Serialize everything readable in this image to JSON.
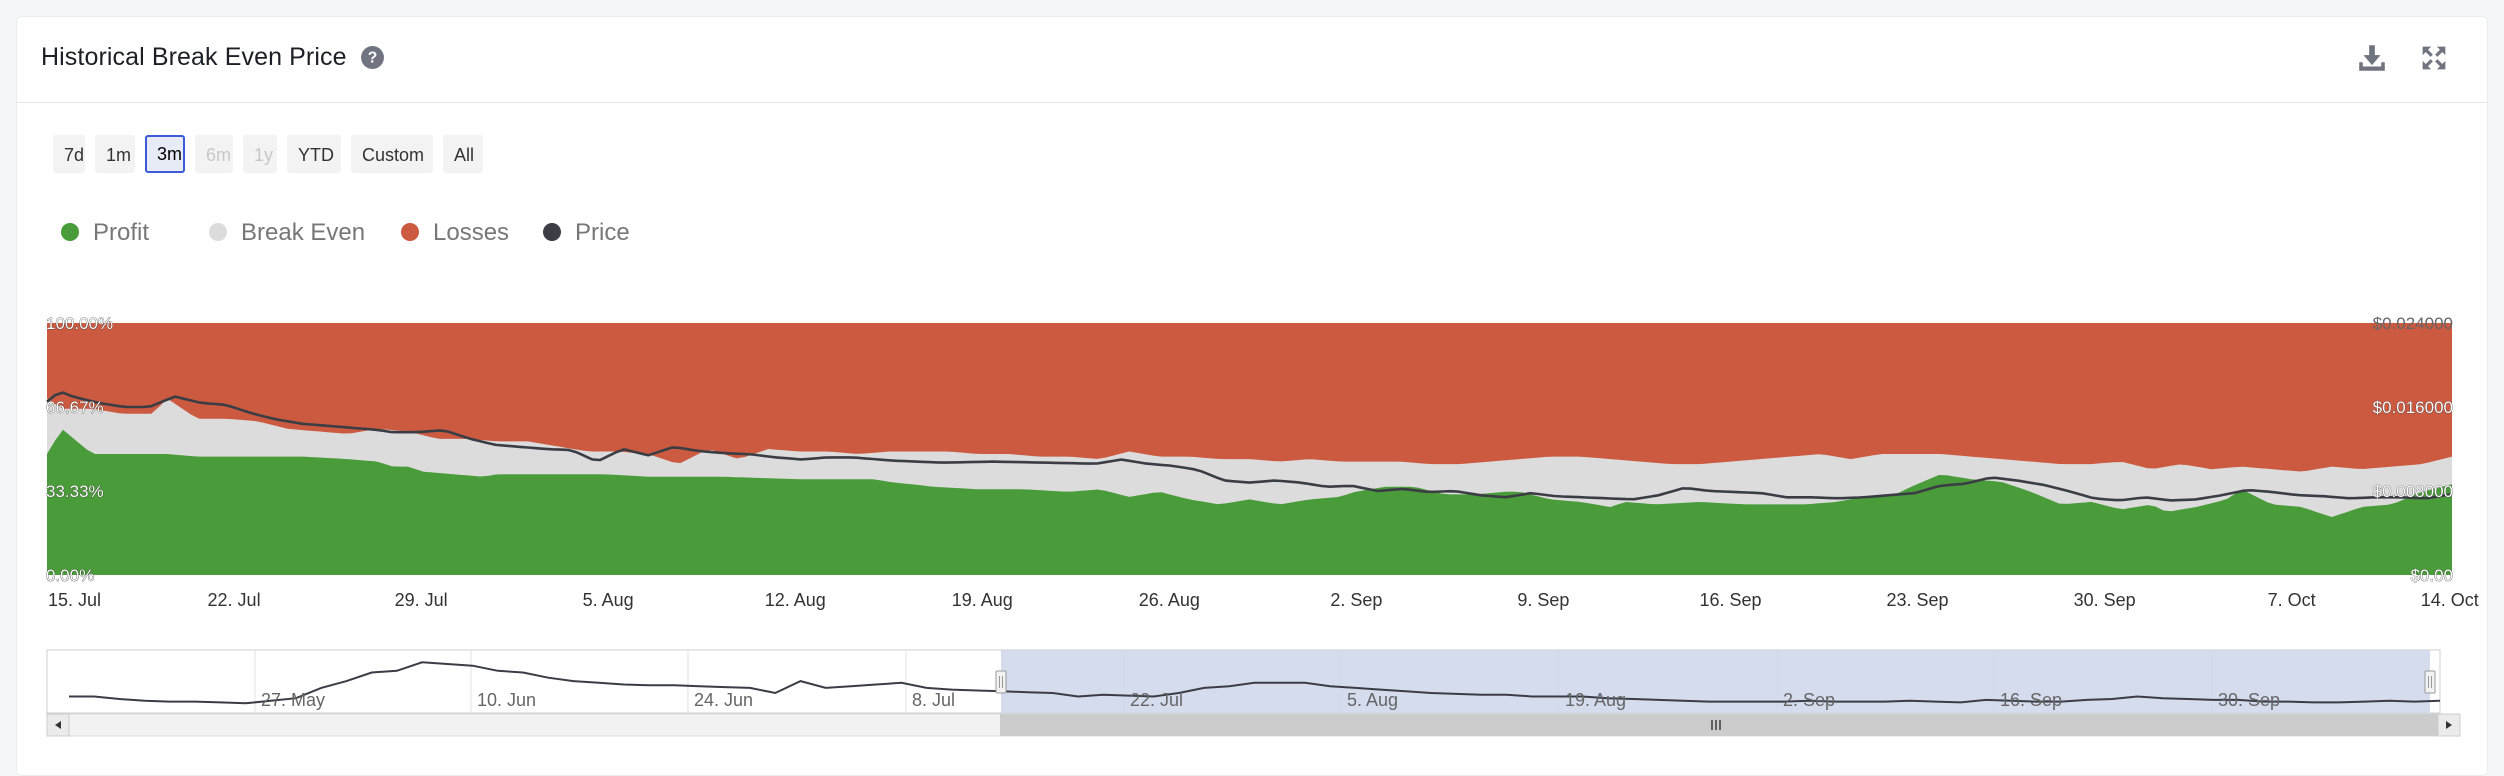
{
  "header": {
    "title": "Historical Break Even Price",
    "help_icon": "question-circle-icon",
    "download_icon": "download-icon",
    "expand_icon": "fullscreen-expand-icon"
  },
  "range_buttons": [
    {
      "label": "7d",
      "state": "normal"
    },
    {
      "label": "1m",
      "state": "normal"
    },
    {
      "label": "3m",
      "state": "active"
    },
    {
      "label": "6m",
      "state": "disabled"
    },
    {
      "label": "1y",
      "state": "disabled"
    },
    {
      "label": "YTD",
      "state": "normal"
    },
    {
      "label": "Custom",
      "state": "normal"
    },
    {
      "label": "All",
      "state": "normal"
    }
  ],
  "legend": [
    {
      "label": "Profit",
      "color": "#4a9b3a"
    },
    {
      "label": "Break Even",
      "color": "#dcdcdc"
    },
    {
      "label": "Losses",
      "color": "#cb5a40"
    },
    {
      "label": "Price",
      "color": "#3b3d45"
    }
  ],
  "chart_data": {
    "type": "area",
    "stacking": "percent",
    "legend_position": "top-left",
    "x_start": "15. Jul",
    "x_end": "14. Oct",
    "x_step_days": 1,
    "xtick_labels": [
      "15. Jul",
      "22. Jul",
      "29. Jul",
      "5. Aug",
      "12. Aug",
      "19. Aug",
      "26. Aug",
      "2. Sep",
      "9. Sep",
      "16. Sep",
      "23. Sep",
      "30. Sep",
      "7. Oct",
      "14. Oct"
    ],
    "y_left": {
      "ticks": [
        "0.00%",
        "33.33%",
        "66.67%",
        "100.00%"
      ],
      "range": [
        0,
        100
      ]
    },
    "y_right": {
      "ticks": [
        "$0.00",
        "$0.008000",
        "$0.016000",
        "$0.024000"
      ],
      "range": [
        0,
        0.024
      ]
    },
    "series": [
      {
        "name": "Profit",
        "unit": "percent",
        "color": "#4a9b3a",
        "anchors": [
          [
            0,
            48
          ],
          [
            1,
            58
          ],
          [
            3,
            48
          ],
          [
            7,
            48
          ],
          [
            8,
            48
          ],
          [
            10,
            47
          ],
          [
            11,
            47
          ],
          [
            17,
            47
          ],
          [
            20,
            46
          ],
          [
            22,
            45
          ],
          [
            23,
            43
          ],
          [
            24,
            43
          ],
          [
            25,
            41
          ],
          [
            27,
            40
          ],
          [
            29,
            39
          ],
          [
            30,
            40
          ],
          [
            32,
            40
          ],
          [
            34,
            40
          ],
          [
            37,
            40
          ],
          [
            40,
            39
          ],
          [
            45,
            39
          ],
          [
            50,
            38
          ],
          [
            53,
            38
          ],
          [
            55,
            38
          ],
          [
            56,
            37
          ],
          [
            59,
            35
          ],
          [
            62,
            34
          ],
          [
            65,
            34
          ],
          [
            68,
            33
          ],
          [
            70,
            34
          ],
          [
            72,
            31
          ],
          [
            74,
            33
          ],
          [
            76,
            30
          ],
          [
            78,
            28
          ],
          [
            80,
            30
          ],
          [
            82,
            28
          ],
          [
            84,
            30
          ],
          [
            86,
            31
          ],
          [
            87,
            33
          ],
          [
            88,
            34
          ],
          [
            89,
            35
          ],
          [
            91,
            35
          ],
          [
            93,
            32
          ],
          [
            95,
            32
          ],
          [
            97,
            33
          ],
          [
            98,
            33
          ],
          [
            100,
            30
          ],
          [
            102,
            29
          ],
          [
            104,
            27
          ],
          [
            105,
            29
          ],
          [
            107,
            28
          ],
          [
            110,
            29
          ],
          [
            113,
            28
          ],
          [
            115,
            28
          ],
          [
            117,
            28
          ],
          [
            119,
            29
          ],
          [
            121,
            31
          ],
          [
            123,
            32
          ],
          [
            124,
            35
          ],
          [
            126,
            40
          ],
          [
            128,
            38
          ],
          [
            130,
            37
          ],
          [
            132,
            33
          ],
          [
            134,
            28
          ],
          [
            136,
            29
          ],
          [
            138,
            26
          ],
          [
            140,
            28
          ],
          [
            141,
            25
          ],
          [
            143,
            27
          ],
          [
            145,
            30
          ],
          [
            146,
            34
          ],
          [
            148,
            28
          ],
          [
            150,
            27
          ],
          [
            152,
            23
          ],
          [
            154,
            27
          ],
          [
            156,
            28
          ],
          [
            158,
            33
          ],
          [
            160,
            36
          ]
        ]
      },
      {
        "name": "Break Even",
        "unit": "percent",
        "color": "#dcdcdc",
        "anchors": [
          [
            0,
            70
          ],
          [
            1,
            66
          ],
          [
            3,
            66
          ],
          [
            5,
            64
          ],
          [
            7,
            64
          ],
          [
            8,
            70
          ],
          [
            10,
            62
          ],
          [
            12,
            62
          ],
          [
            14,
            61
          ],
          [
            16,
            58
          ],
          [
            18,
            57
          ],
          [
            20,
            56
          ],
          [
            22,
            58
          ],
          [
            24,
            57
          ],
          [
            26,
            54
          ],
          [
            28,
            54
          ],
          [
            30,
            53
          ],
          [
            32,
            53
          ],
          [
            34,
            51
          ],
          [
            36,
            49
          ],
          [
            38,
            49
          ],
          [
            40,
            48
          ],
          [
            42,
            44
          ],
          [
            44,
            50
          ],
          [
            46,
            46
          ],
          [
            48,
            50
          ],
          [
            50,
            49
          ],
          [
            52,
            49
          ],
          [
            54,
            48
          ],
          [
            56,
            49
          ],
          [
            58,
            49
          ],
          [
            60,
            49
          ],
          [
            62,
            48
          ],
          [
            64,
            48
          ],
          [
            66,
            47
          ],
          [
            68,
            47
          ],
          [
            70,
            46
          ],
          [
            72,
            49
          ],
          [
            74,
            47
          ],
          [
            76,
            47
          ],
          [
            78,
            46
          ],
          [
            80,
            46
          ],
          [
            82,
            45
          ],
          [
            84,
            46
          ],
          [
            86,
            45
          ],
          [
            88,
            45
          ],
          [
            90,
            45
          ],
          [
            92,
            44
          ],
          [
            94,
            44
          ],
          [
            96,
            45
          ],
          [
            98,
            46
          ],
          [
            100,
            47
          ],
          [
            102,
            47
          ],
          [
            104,
            46
          ],
          [
            106,
            45
          ],
          [
            108,
            44
          ],
          [
            110,
            44
          ],
          [
            112,
            45
          ],
          [
            114,
            46
          ],
          [
            116,
            47
          ],
          [
            118,
            48
          ],
          [
            120,
            46
          ],
          [
            122,
            48
          ],
          [
            124,
            48
          ],
          [
            126,
            48
          ],
          [
            128,
            47
          ],
          [
            130,
            46
          ],
          [
            132,
            45
          ],
          [
            134,
            44
          ],
          [
            136,
            44
          ],
          [
            138,
            45
          ],
          [
            140,
            42
          ],
          [
            142,
            44
          ],
          [
            144,
            42
          ],
          [
            146,
            43
          ],
          [
            148,
            42
          ],
          [
            150,
            41
          ],
          [
            152,
            43
          ],
          [
            154,
            42
          ],
          [
            156,
            43
          ],
          [
            158,
            44
          ],
          [
            160,
            47
          ]
        ]
      },
      {
        "name": "Losses",
        "unit": "percent",
        "color": "#cb5a40",
        "fill": "remainder to 100%"
      },
      {
        "name": "Price",
        "unit": "USD",
        "color": "#3b3d45",
        "anchors": [
          [
            0,
            0.0165
          ],
          [
            1,
            0.0175
          ],
          [
            2,
            0.017
          ],
          [
            4,
            0.0164
          ],
          [
            6,
            0.016
          ],
          [
            8,
            0.016
          ],
          [
            10,
            0.017
          ],
          [
            12,
            0.0164
          ],
          [
            14,
            0.0162
          ],
          [
            16,
            0.0154
          ],
          [
            18,
            0.0148
          ],
          [
            20,
            0.0144
          ],
          [
            22,
            0.0142
          ],
          [
            24,
            0.014
          ],
          [
            26,
            0.0138
          ],
          [
            27,
            0.0136
          ],
          [
            29,
            0.0136
          ],
          [
            31,
            0.0138
          ],
          [
            33,
            0.013
          ],
          [
            35,
            0.0124
          ],
          [
            37,
            0.0122
          ],
          [
            39,
            0.012
          ],
          [
            41,
            0.0119
          ],
          [
            43,
            0.0108
          ],
          [
            45,
            0.012
          ],
          [
            47,
            0.0114
          ],
          [
            49,
            0.0122
          ],
          [
            51,
            0.0118
          ],
          [
            53,
            0.0116
          ],
          [
            55,
            0.0115
          ],
          [
            57,
            0.0112
          ],
          [
            59,
            0.011
          ],
          [
            61,
            0.0112
          ],
          [
            63,
            0.0112
          ],
          [
            66,
            0.0109
          ],
          [
            70,
            0.0107
          ],
          [
            74,
            0.0108
          ],
          [
            78,
            0.0107
          ],
          [
            82,
            0.0106
          ],
          [
            84,
            0.011
          ],
          [
            86,
            0.0106
          ],
          [
            88,
            0.0104
          ],
          [
            90,
            0.01
          ],
          [
            92,
            0.009
          ],
          [
            94,
            0.0088
          ],
          [
            96,
            0.009
          ],
          [
            98,
            0.0088
          ],
          [
            100,
            0.0084
          ],
          [
            102,
            0.0085
          ],
          [
            104,
            0.008
          ],
          [
            106,
            0.0082
          ],
          [
            108,
            0.0079
          ],
          [
            110,
            0.008
          ],
          [
            112,
            0.0076
          ],
          [
            114,
            0.0074
          ],
          [
            116,
            0.0078
          ],
          [
            118,
            0.0075
          ],
          [
            120,
            0.0074
          ],
          [
            122,
            0.0073
          ],
          [
            124,
            0.0072
          ],
          [
            126,
            0.0076
          ],
          [
            128,
            0.0083
          ],
          [
            130,
            0.008
          ],
          [
            132,
            0.0079
          ],
          [
            134,
            0.0078
          ],
          [
            136,
            0.0074
          ],
          [
            138,
            0.0074
          ],
          [
            140,
            0.0073
          ],
          [
            142,
            0.0074
          ],
          [
            144,
            0.0076
          ],
          [
            146,
            0.0078
          ],
          [
            148,
            0.0085
          ],
          [
            150,
            0.0087
          ],
          [
            152,
            0.0093
          ],
          [
            154,
            0.009
          ],
          [
            156,
            0.0086
          ],
          [
            158,
            0.008
          ],
          [
            160,
            0.0073
          ],
          [
            162,
            0.0071
          ],
          [
            164,
            0.0074
          ],
          [
            166,
            0.0071
          ],
          [
            168,
            0.0072
          ],
          [
            170,
            0.0076
          ],
          [
            172,
            0.0081
          ],
          [
            174,
            0.0079
          ],
          [
            176,
            0.0076
          ],
          [
            178,
            0.0075
          ],
          [
            180,
            0.0073
          ],
          [
            182,
            0.0074
          ],
          [
            184,
            0.0074
          ],
          [
            186,
            0.0073
          ],
          [
            188,
            0.0077
          ]
        ]
      }
    ]
  },
  "navigator": {
    "labels": [
      "27. May",
      "10. Jun",
      "24. Jun",
      "8. Jul",
      "22. Jul",
      "5. Aug",
      "19. Aug",
      "2. Sep",
      "16. Sep",
      "30. Sep"
    ],
    "selected_range": [
      "15. Jul",
      "14. Oct"
    ],
    "price_series": [
      0.01,
      0.01,
      0.0097,
      0.0095,
      0.0094,
      0.0094,
      0.0093,
      0.0092,
      0.0095,
      0.0098,
      0.011,
      0.0118,
      0.0128,
      0.013,
      0.014,
      0.0138,
      0.0136,
      0.013,
      0.0128,
      0.0122,
      0.0118,
      0.0116,
      0.0114,
      0.0113,
      0.0113,
      0.0112,
      0.0111,
      0.011,
      0.0104,
      0.0118,
      0.011,
      0.0112,
      0.0114,
      0.0116,
      0.011,
      0.0108,
      0.0107,
      0.0106,
      0.0105,
      0.0104,
      0.01,
      0.0102,
      0.0101,
      0.01,
      0.0104,
      0.011,
      0.0112,
      0.0116,
      0.0116,
      0.0116,
      0.0112,
      0.011,
      0.0108,
      0.0106,
      0.0104,
      0.0103,
      0.0102,
      0.0102,
      0.01,
      0.01,
      0.01,
      0.0098,
      0.0097,
      0.0096,
      0.0095,
      0.0094,
      0.0094,
      0.0094,
      0.0094,
      0.0095,
      0.0094,
      0.0094,
      0.0094,
      0.0095,
      0.0094,
      0.0093,
      0.0096,
      0.0095,
      0.0094,
      0.0094,
      0.0096,
      0.0097,
      0.01,
      0.0098,
      0.0097,
      0.0096,
      0.0096,
      0.0094,
      0.0094,
      0.0093,
      0.0093,
      0.0094,
      0.0095,
      0.0094,
      0.0095
    ],
    "scrollbar_grip_icon": "grip-lines-icon"
  }
}
